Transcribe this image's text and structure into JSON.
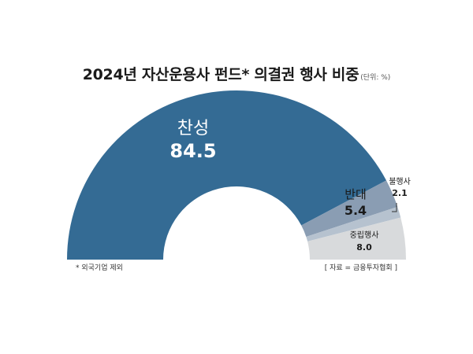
{
  "title": "2024년 자산운용사 펀드* 의결권 행사 비중",
  "unit": "(단위: %)",
  "footnote": "* 외국기업 제외",
  "source": "[ 자료 = 금융투자협회 ]",
  "colors": {
    "찬성": "#346b94",
    "반대": "#8a9db3",
    "불행사": "#b6c2cf",
    "중립행사": "#d8dadc",
    "label_light": "#ffffff",
    "label_dark": "#1a1a1a"
  },
  "chart_data": {
    "type": "pie",
    "variant": "semi-donut",
    "title": "2024년 자산운용사 펀드* 의결권 행사 비중",
    "unit": "%",
    "categories": [
      "찬성",
      "반대",
      "불행사",
      "중립행사"
    ],
    "values": [
      84.5,
      5.4,
      2.1,
      8.0
    ],
    "value_labels": [
      "84.5",
      "5.4",
      "2.1",
      "8.0"
    ]
  }
}
